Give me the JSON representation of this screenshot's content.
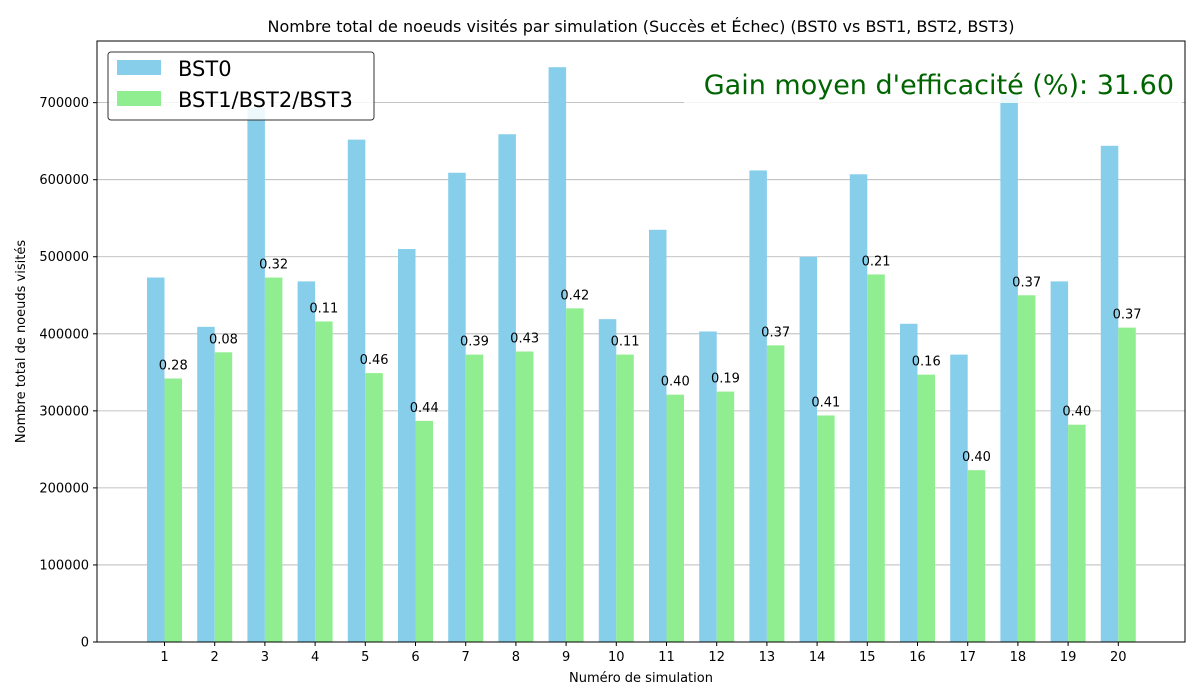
{
  "chart_data": {
    "type": "bar",
    "title": "Nombre total de noeuds visités par simulation (Succès et Échec) (BST0 vs BST1, BST2, BST3)",
    "xlabel": "Numéro de simulation",
    "ylabel": "Nombre total de noeuds visités",
    "categories": [
      "1",
      "2",
      "3",
      "4",
      "5",
      "6",
      "7",
      "8",
      "9",
      "10",
      "11",
      "12",
      "13",
      "14",
      "15",
      "16",
      "17",
      "18",
      "19",
      "20"
    ],
    "series": [
      {
        "name": "BST0",
        "color": "#87CEEB",
        "values": [
          473000,
          409000,
          693000,
          468000,
          652000,
          510000,
          609000,
          659000,
          746000,
          419000,
          535000,
          403000,
          612000,
          500000,
          607000,
          413000,
          373000,
          711000,
          468000,
          644000
        ]
      },
      {
        "name": "BST1/BST2/BST3",
        "color": "#90EE90",
        "values": [
          342000,
          376000,
          473000,
          416000,
          349000,
          287000,
          373000,
          377000,
          433000,
          373000,
          321000,
          325000,
          385000,
          294000,
          477000,
          347000,
          223000,
          450000,
          282000,
          408000
        ]
      }
    ],
    "bar_labels": [
      "0.28",
      "0.08",
      "0.32",
      "0.11",
      "0.46",
      "0.44",
      "0.39",
      "0.43",
      "0.42",
      "0.11",
      "0.40",
      "0.19",
      "0.37",
      "0.41",
      "0.21",
      "0.16",
      "0.40",
      "0.37",
      "0.40",
      "0.37"
    ],
    "yticks": [
      "0",
      "100000",
      "200000",
      "300000",
      "400000",
      "500000",
      "600000",
      "700000"
    ],
    "ylim": [
      0,
      780000
    ],
    "grid": "horizontal",
    "legend_position": "top-left",
    "annotation": "Gain moyen d'efficacité (%): 31.60",
    "annotation_color": "#006400"
  }
}
